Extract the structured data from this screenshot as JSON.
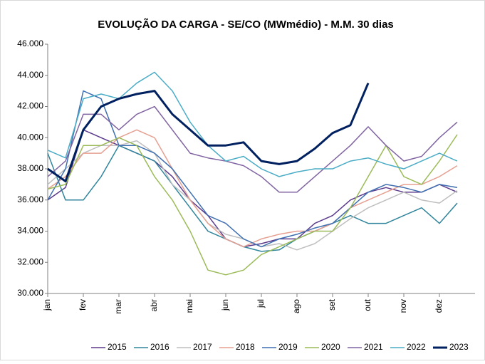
{
  "chart_data": {
    "type": "line",
    "title": "EVOLUÇÃO DA CARGA - SE/CO (MWmédio) - M.M. 30 dias",
    "categories": [
      "jan",
      null,
      "fev",
      null,
      "mar",
      null,
      "abr",
      null,
      "mai",
      null,
      "jun",
      null,
      "jul",
      null,
      "ago",
      null,
      "set",
      null,
      "out",
      null,
      "nov",
      null,
      "dez",
      null
    ],
    "ylim": [
      30000,
      46000
    ],
    "yticks": [
      {
        "value": 30000,
        "label": "30.000"
      },
      {
        "value": 32000,
        "label": "32.000"
      },
      {
        "value": 34000,
        "label": "34.000"
      },
      {
        "value": 36000,
        "label": "36.000"
      },
      {
        "value": 38000,
        "label": "38.000"
      },
      {
        "value": 40000,
        "label": "40.000"
      },
      {
        "value": 42000,
        "label": "42.000"
      },
      {
        "value": 44000,
        "label": "44.000"
      },
      {
        "value": 46000,
        "label": "46.000"
      }
    ],
    "grid": false,
    "legend": "bottom",
    "series": [
      {
        "name": "2015",
        "color": "#5b3a8c",
        "width": 1.5,
        "values": [
          36000,
          36800,
          40500,
          40000,
          39500,
          39000,
          38500,
          37500,
          36000,
          35000,
          33500,
          33000,
          33200,
          33500,
          33500,
          34500,
          35000,
          36000,
          36500,
          36800,
          36500,
          36500,
          37000,
          36500
        ]
      },
      {
        "name": "2016",
        "color": "#31859c",
        "width": 1.5,
        "values": [
          39000,
          36000,
          36000,
          37500,
          39500,
          39000,
          38500,
          37000,
          35500,
          34000,
          33500,
          33000,
          32700,
          32800,
          33500,
          34000,
          34500,
          35000,
          34500,
          34500,
          35000,
          35500,
          34500,
          35800
        ]
      },
      {
        "name": "2017",
        "color": "#bfbfbf",
        "width": 1.5,
        "values": [
          37000,
          38000,
          39000,
          39500,
          39500,
          39800,
          39000,
          37000,
          36000,
          34500,
          33800,
          33500,
          33000,
          33200,
          32800,
          33200,
          34000,
          34800,
          35500,
          36000,
          36500,
          36000,
          35800,
          36600
        ]
      },
      {
        "name": "2018",
        "color": "#e6a091",
        "width": 1.5,
        "values": [
          36700,
          37500,
          39000,
          39000,
          40000,
          40500,
          40000,
          38000,
          36000,
          34500,
          33500,
          33000,
          33500,
          33800,
          34000,
          34000,
          34500,
          35500,
          36000,
          36500,
          37000,
          37000,
          37500,
          38200
        ]
      },
      {
        "name": "2019",
        "color": "#3f6fb0",
        "width": 1.5,
        "values": [
          36000,
          38000,
          43000,
          42500,
          39500,
          39500,
          39000,
          38000,
          36500,
          35000,
          34500,
          33500,
          33000,
          33500,
          33800,
          34200,
          34500,
          35500,
          36500,
          37000,
          36800,
          36500,
          37000,
          36800
        ]
      },
      {
        "name": "2020",
        "color": "#9bbb59",
        "width": 1.5,
        "values": [
          36700,
          37000,
          39500,
          39500,
          40000,
          39500,
          37500,
          36000,
          34000,
          31500,
          31200,
          31500,
          32500,
          33000,
          33500,
          34000,
          34000,
          35500,
          37500,
          39500,
          37500,
          37000,
          38500,
          40200
        ]
      },
      {
        "name": "2021",
        "color": "#8064a2",
        "width": 1.5,
        "values": [
          37500,
          38500,
          41500,
          41500,
          40500,
          41500,
          42000,
          40500,
          39000,
          38700,
          38500,
          38200,
          37500,
          36500,
          36500,
          37500,
          38500,
          39500,
          40700,
          39500,
          38500,
          38800,
          40000,
          41000
        ]
      },
      {
        "name": "2022",
        "color": "#4bacc6",
        "width": 1.5,
        "values": [
          39200,
          38700,
          42500,
          42800,
          42500,
          43500,
          44200,
          43000,
          41000,
          39500,
          38500,
          38800,
          38000,
          37500,
          37800,
          38000,
          38000,
          38500,
          38700,
          38300,
          38000,
          38500,
          39000,
          38500
        ]
      },
      {
        "name": "2023",
        "color": "#002060",
        "width": 3,
        "values": [
          38000,
          37200,
          40500,
          42000,
          42500,
          42800,
          43000,
          41500,
          40500,
          39500,
          39500,
          39700,
          38500,
          38300,
          38500,
          39300,
          40300,
          40800,
          43500,
          null,
          null,
          null,
          null,
          null
        ]
      }
    ]
  }
}
